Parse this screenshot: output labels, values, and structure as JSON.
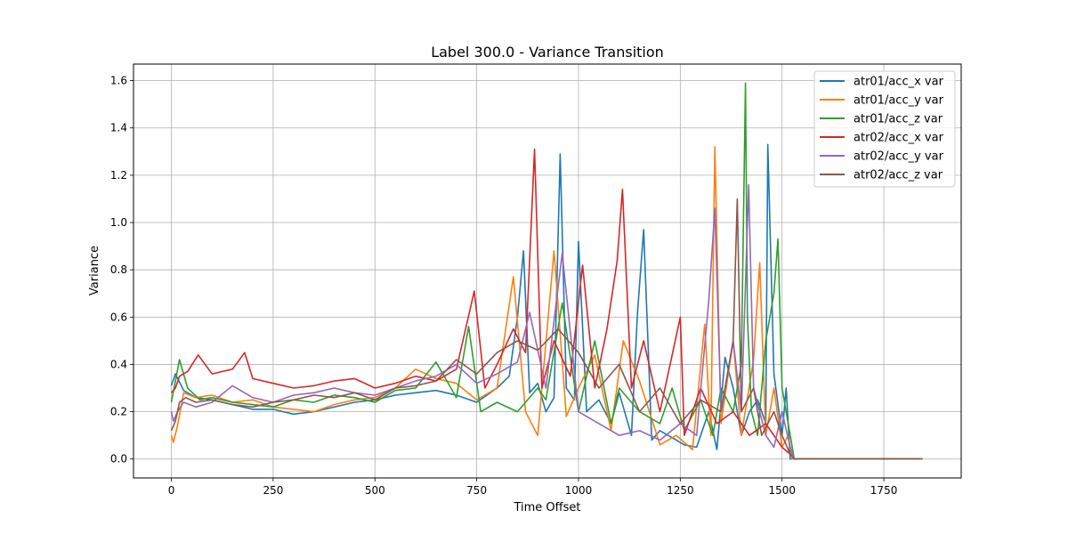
{
  "chart_data": {
    "type": "line",
    "title": "Label 300.0 - Variance Transition",
    "xlabel": "Time Offset",
    "ylabel": "Variance",
    "xlim": [
      -93,
      1940
    ],
    "ylim": [
      -0.08,
      1.67
    ],
    "x_ticks": [
      0,
      250,
      500,
      750,
      1000,
      1250,
      1500,
      1750
    ],
    "y_ticks": [
      0.0,
      0.2,
      0.4,
      0.6,
      0.8,
      1.0,
      1.2,
      1.4,
      1.6
    ],
    "x_tick_labels": [
      "0",
      "250",
      "500",
      "750",
      "1000",
      "1250",
      "1500",
      "1750"
    ],
    "y_tick_labels": [
      "0.0",
      "0.2",
      "0.4",
      "0.6",
      "0.8",
      "1.0",
      "1.2",
      "1.4",
      "1.6"
    ],
    "grid": true,
    "legend_position": "top-right",
    "series": [
      {
        "name": "atr01/acc_x var",
        "color": "#1f77b4",
        "x": [
          0,
          10,
          30,
          60,
          100,
          150,
          200,
          250,
          300,
          350,
          400,
          450,
          500,
          550,
          600,
          650,
          700,
          750,
          800,
          830,
          850,
          865,
          880,
          900,
          920,
          940,
          955,
          970,
          990,
          1000,
          1020,
          1050,
          1080,
          1100,
          1130,
          1145,
          1160,
          1180,
          1200,
          1230,
          1260,
          1290,
          1320,
          1340,
          1360,
          1380,
          1400,
          1420,
          1440,
          1460,
          1465,
          1480,
          1500,
          1510,
          1520,
          1525,
          1600,
          1700,
          1800,
          1845
        ],
        "y": [
          0.31,
          0.36,
          0.29,
          0.26,
          0.25,
          0.23,
          0.21,
          0.21,
          0.19,
          0.2,
          0.22,
          0.24,
          0.25,
          0.27,
          0.28,
          0.29,
          0.27,
          0.24,
          0.3,
          0.35,
          0.6,
          0.88,
          0.28,
          0.32,
          0.2,
          0.26,
          1.29,
          0.3,
          0.25,
          0.92,
          0.2,
          0.25,
          0.15,
          0.28,
          0.1,
          0.62,
          0.97,
          0.08,
          0.12,
          0.09,
          0.06,
          0.05,
          0.2,
          0.04,
          0.43,
          0.3,
          0.1,
          0.2,
          0.25,
          0.15,
          1.33,
          0.36,
          0.1,
          0.3,
          0.0,
          0.0,
          0.0,
          0.0,
          0.0,
          0.0
        ]
      },
      {
        "name": "atr01/acc_y var",
        "color": "#ff7f0e",
        "x": [
          0,
          5,
          15,
          30,
          60,
          100,
          150,
          200,
          250,
          300,
          350,
          400,
          450,
          500,
          550,
          600,
          650,
          700,
          750,
          800,
          840,
          870,
          900,
          940,
          970,
          1000,
          1040,
          1080,
          1110,
          1150,
          1200,
          1240,
          1280,
          1310,
          1325,
          1335,
          1350,
          1380,
          1400,
          1430,
          1445,
          1460,
          1480,
          1500,
          1515,
          1525,
          1600,
          1700,
          1800,
          1845
        ],
        "y": [
          0.1,
          0.07,
          0.14,
          0.28,
          0.26,
          0.27,
          0.24,
          0.25,
          0.22,
          0.21,
          0.2,
          0.23,
          0.25,
          0.26,
          0.3,
          0.38,
          0.34,
          0.32,
          0.25,
          0.3,
          0.77,
          0.2,
          0.1,
          0.88,
          0.18,
          0.3,
          0.44,
          0.12,
          0.5,
          0.33,
          0.06,
          0.1,
          0.04,
          0.57,
          0.1,
          1.32,
          0.15,
          0.5,
          0.1,
          0.42,
          0.83,
          0.1,
          0.3,
          0.05,
          0.1,
          0.0,
          0.0,
          0.0,
          0.0,
          0.0
        ]
      },
      {
        "name": "atr01/acc_z var",
        "color": "#2ca02c",
        "x": [
          0,
          10,
          20,
          40,
          70,
          100,
          150,
          200,
          250,
          300,
          350,
          400,
          450,
          500,
          550,
          600,
          650,
          700,
          730,
          760,
          800,
          850,
          900,
          920,
          960,
          1000,
          1040,
          1080,
          1100,
          1150,
          1200,
          1230,
          1260,
          1300,
          1330,
          1350,
          1380,
          1400,
          1410,
          1415,
          1425,
          1440,
          1460,
          1480,
          1490,
          1500,
          1510,
          1520,
          1530,
          1600,
          1700,
          1800,
          1845
        ],
        "y": [
          0.24,
          0.33,
          0.42,
          0.3,
          0.25,
          0.26,
          0.24,
          0.23,
          0.22,
          0.25,
          0.24,
          0.27,
          0.26,
          0.24,
          0.29,
          0.3,
          0.41,
          0.26,
          0.56,
          0.2,
          0.24,
          0.2,
          0.3,
          0.25,
          0.66,
          0.2,
          0.5,
          0.15,
          0.3,
          0.2,
          0.15,
          0.3,
          0.12,
          0.25,
          0.1,
          0.3,
          0.2,
          0.4,
          1.59,
          0.6,
          0.2,
          0.1,
          0.5,
          0.7,
          0.93,
          0.3,
          0.2,
          0.1,
          0.0,
          0.0,
          0.0,
          0.0,
          0.0
        ]
      },
      {
        "name": "atr02/acc_x var",
        "color": "#d62728",
        "x": [
          0,
          10,
          20,
          40,
          66,
          100,
          150,
          180,
          200,
          250,
          300,
          350,
          400,
          450,
          500,
          550,
          600,
          650,
          700,
          744,
          770,
          800,
          840,
          870,
          892,
          910,
          940,
          980,
          1010,
          1040,
          1070,
          1095,
          1108,
          1130,
          1160,
          1200,
          1250,
          1260,
          1300,
          1340,
          1380,
          1420,
          1460,
          1500,
          1520,
          1530,
          1600,
          1700,
          1800,
          1845
        ],
        "y": [
          0.28,
          0.3,
          0.35,
          0.37,
          0.44,
          0.36,
          0.38,
          0.45,
          0.34,
          0.32,
          0.3,
          0.31,
          0.33,
          0.34,
          0.3,
          0.32,
          0.35,
          0.33,
          0.38,
          0.71,
          0.3,
          0.4,
          0.55,
          0.45,
          1.31,
          0.3,
          0.5,
          0.35,
          0.82,
          0.3,
          0.55,
          0.84,
          1.14,
          0.3,
          0.5,
          0.2,
          0.6,
          0.1,
          0.3,
          0.15,
          0.2,
          0.1,
          0.15,
          0.05,
          0.02,
          0.0,
          0.0,
          0.0,
          0.0,
          0.0
        ]
      },
      {
        "name": "atr02/acc_y var",
        "color": "#9467bd",
        "x": [
          0,
          5,
          15,
          30,
          60,
          100,
          150,
          200,
          250,
          300,
          350,
          400,
          450,
          500,
          550,
          600,
          650,
          700,
          750,
          800,
          850,
          880,
          920,
          960,
          1000,
          1050,
          1100,
          1150,
          1200,
          1250,
          1290,
          1320,
          1335,
          1350,
          1380,
          1400,
          1418,
          1430,
          1460,
          1480,
          1500,
          1520,
          1530,
          1600,
          1700,
          1800,
          1845
        ],
        "y": [
          0.2,
          0.16,
          0.2,
          0.24,
          0.22,
          0.24,
          0.31,
          0.26,
          0.24,
          0.27,
          0.28,
          0.3,
          0.28,
          0.27,
          0.3,
          0.33,
          0.35,
          0.4,
          0.32,
          0.36,
          0.41,
          0.62,
          0.3,
          0.87,
          0.2,
          0.15,
          0.1,
          0.12,
          0.08,
          0.15,
          0.1,
          0.67,
          1.06,
          0.2,
          0.5,
          0.2,
          1.16,
          0.3,
          0.1,
          0.05,
          0.2,
          0.05,
          0.0,
          0.0,
          0.0,
          0.0,
          0.0
        ]
      },
      {
        "name": "atr02/acc_z var",
        "color": "#8c564b",
        "x": [
          0,
          10,
          20,
          35,
          60,
          100,
          150,
          200,
          250,
          300,
          350,
          400,
          450,
          500,
          550,
          600,
          650,
          700,
          750,
          800,
          850,
          900,
          950,
          1000,
          1050,
          1100,
          1150,
          1200,
          1250,
          1300,
          1350,
          1380,
          1390,
          1400,
          1430,
          1450,
          1480,
          1500,
          1520,
          1530,
          1600,
          1700,
          1800,
          1845
        ],
        "y": [
          0.12,
          0.16,
          0.24,
          0.26,
          0.24,
          0.25,
          0.23,
          0.22,
          0.24,
          0.25,
          0.27,
          0.26,
          0.28,
          0.25,
          0.3,
          0.31,
          0.33,
          0.42,
          0.36,
          0.45,
          0.5,
          0.46,
          0.55,
          0.45,
          0.3,
          0.4,
          0.2,
          0.3,
          0.15,
          0.25,
          0.2,
          0.5,
          1.1,
          0.2,
          0.3,
          0.1,
          0.2,
          0.1,
          0.02,
          0.0,
          0.0,
          0.0,
          0.0,
          0.0
        ]
      }
    ]
  }
}
